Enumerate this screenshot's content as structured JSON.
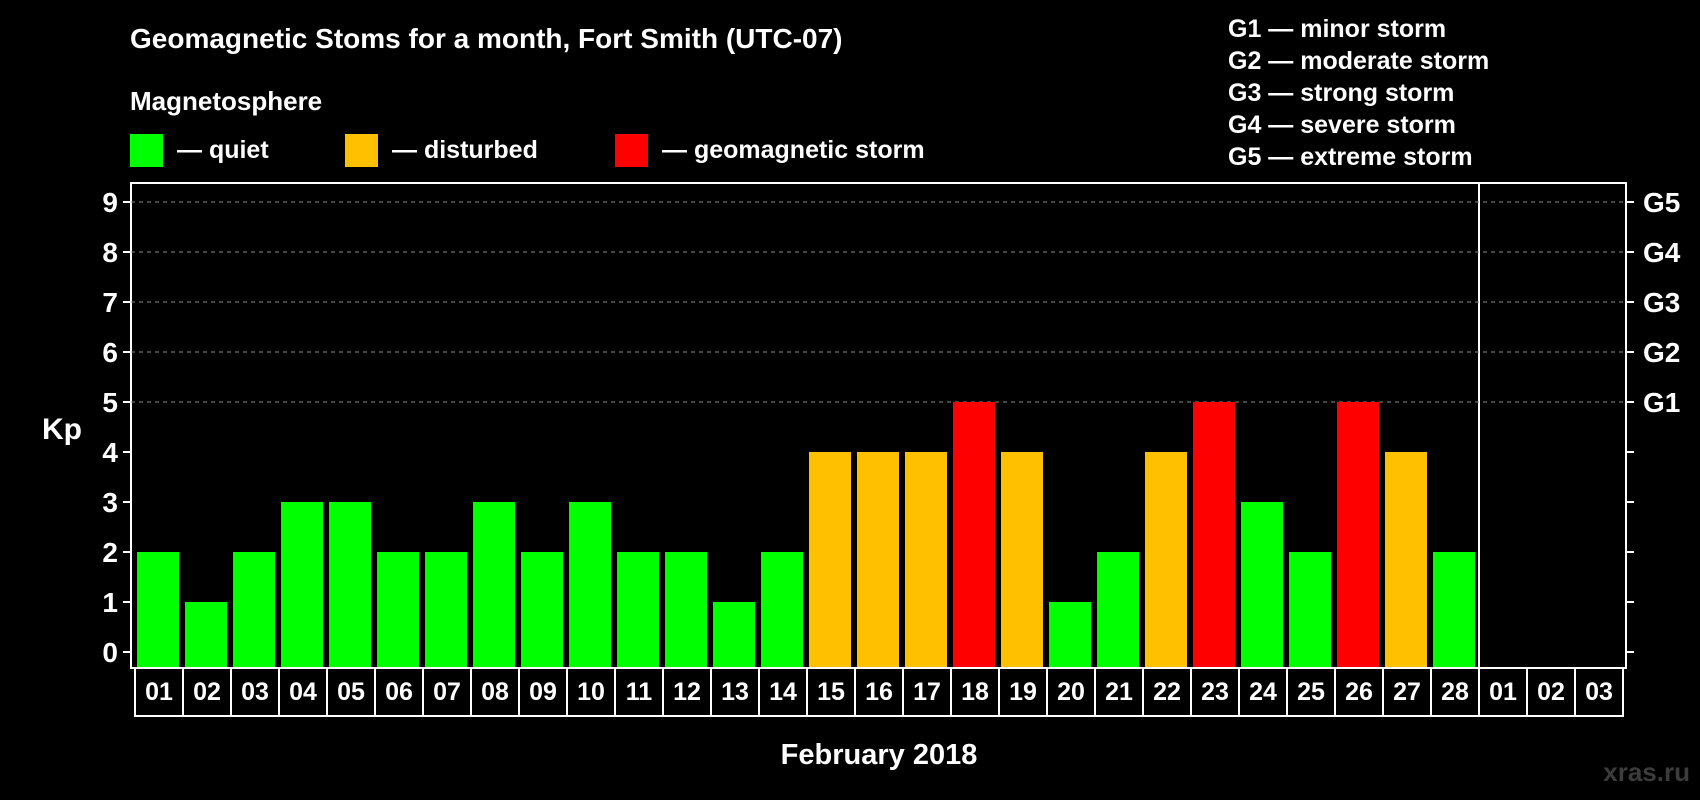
{
  "chart_data": {
    "type": "bar",
    "title": "Geomagnetic Stoms for a month, Fort Smith (UTC-07)",
    "subtitle": "Magnetosphere",
    "ylabel": "Kp",
    "xlabel": "February 2018",
    "ylim": [
      0,
      9
    ],
    "yticks": [
      "0",
      "1",
      "2",
      "3",
      "4",
      "5",
      "6",
      "7",
      "8",
      "9"
    ],
    "right_axis_labels": [
      {
        "kp": 5,
        "label": "G1"
      },
      {
        "kp": 6,
        "label": "G2"
      },
      {
        "kp": 7,
        "label": "G3"
      },
      {
        "kp": 8,
        "label": "G4"
      },
      {
        "kp": 9,
        "label": "G5"
      }
    ],
    "grid": "dashed horizontal at Kp 5-9",
    "categories": [
      "01",
      "02",
      "03",
      "04",
      "05",
      "06",
      "07",
      "08",
      "09",
      "10",
      "11",
      "12",
      "13",
      "14",
      "15",
      "16",
      "17",
      "18",
      "19",
      "20",
      "21",
      "22",
      "23",
      "24",
      "25",
      "26",
      "27",
      "28",
      "01",
      "02",
      "03"
    ],
    "values": [
      2,
      1,
      2,
      3,
      3,
      2,
      2,
      3,
      2,
      3,
      2,
      2,
      1,
      2,
      4,
      4,
      4,
      5,
      4,
      1,
      2,
      4,
      5,
      3,
      2,
      5,
      4,
      2,
      null,
      null,
      null
    ],
    "thresholds": {
      "disturbed_min": 4,
      "storm_min": 5
    },
    "legend": [
      {
        "key": "quiet",
        "label": "— quiet",
        "color": "#00ff00"
      },
      {
        "key": "disturbed",
        "label": "— disturbed",
        "color": "#ffc000"
      },
      {
        "key": "storm",
        "label": "— geomagnetic storm",
        "color": "#ff0000"
      }
    ],
    "scale_legend": [
      "G1 — minor storm",
      "G2 — moderate storm",
      "G3 — strong storm",
      "G4 — severe storm",
      "G5 — extreme storm"
    ],
    "credit": "xras.ru"
  }
}
